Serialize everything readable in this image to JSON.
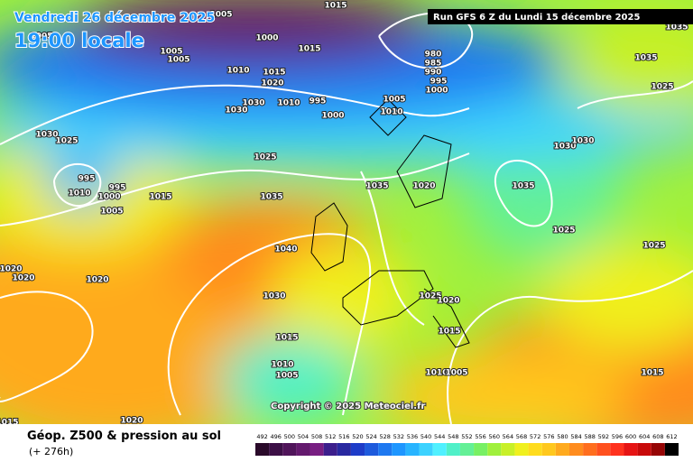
{
  "header": {
    "date": "Vendredi 26 décembre 2025",
    "time": "19:00 locale",
    "run": "Run GFS 6 Z du Lundi 15 décembre 2025"
  },
  "footer": {
    "title": "Géop. Z500 & pression au sol",
    "lead": "(+ 276h)",
    "copyright": "Copyright © 2025 Meteociel.fr"
  },
  "legend": {
    "levels": [
      492,
      496,
      500,
      504,
      508,
      512,
      516,
      520,
      524,
      528,
      532,
      536,
      540,
      544,
      548,
      552,
      556,
      560,
      564,
      568,
      572,
      576,
      580,
      584,
      588,
      592,
      596,
      600,
      604,
      608,
      612
    ],
    "colors": [
      "#2a0a2a",
      "#3c0f46",
      "#50145a",
      "#64196e",
      "#781e82",
      "#3c1e8c",
      "#2828a0",
      "#1e3cc8",
      "#1e5adc",
      "#1e78f0",
      "#1e96ff",
      "#28b4ff",
      "#3cd2ff",
      "#50f0ff",
      "#50f0c8",
      "#64f096",
      "#78f064",
      "#a0f03c",
      "#c8f028",
      "#f0f01e",
      "#ffdc1e",
      "#ffc81e",
      "#ffaa1e",
      "#ff8c1e",
      "#ff6e1e",
      "#ff501e",
      "#ff321e",
      "#e61414",
      "#c80a0a",
      "#960505",
      "#000000"
    ]
  },
  "isobars": [
    "1005",
    "1005",
    "1015",
    "1000",
    "1015",
    "1005",
    "1005",
    "1010",
    "1015",
    "1020",
    "1030",
    "1010",
    "995",
    "1000",
    "1030",
    "1005",
    "1010",
    "980",
    "985",
    "990",
    "995",
    "1000",
    "1030",
    "1025",
    "1025",
    "995",
    "995",
    "1010",
    "1000",
    "1005",
    "1015",
    "1035",
    "1035",
    "1020",
    "1035",
    "1030",
    "1030",
    "1025",
    "1025",
    "1040",
    "1020",
    "1020",
    "1020",
    "1030",
    "1025",
    "1020",
    "1015",
    "1015",
    "1010",
    "1005",
    "1010",
    "1005",
    "1015",
    "1020",
    "1015",
    "1035",
    "1025",
    "1035"
  ]
}
